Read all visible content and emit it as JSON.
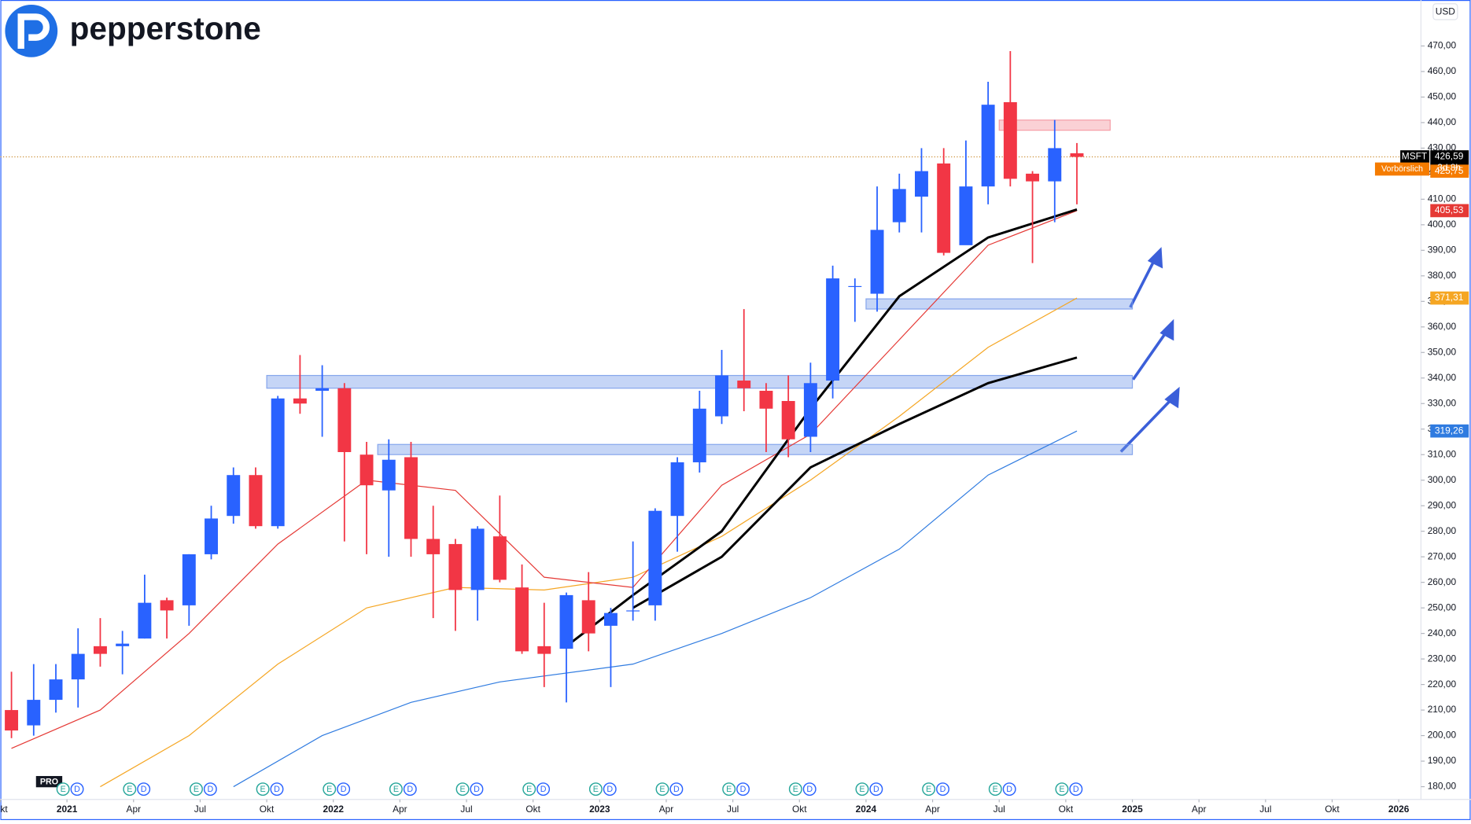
{
  "brand": "pepperstone",
  "watermark": "PRO",
  "chart_data": {
    "type": "candlestick",
    "currency": "USD",
    "up_color": "#2962ff",
    "down_color": "#f23645",
    "x": [
      "2020-10",
      "2020-11",
      "2020-12",
      "2021-01",
      "2021-02",
      "2021-03",
      "2021-04",
      "2021-05",
      "2021-06",
      "2021-07",
      "2021-08",
      "2021-09",
      "2021-10",
      "2021-11",
      "2021-12",
      "2022-01",
      "2022-02",
      "2022-03",
      "2022-04",
      "2022-05",
      "2022-06",
      "2022-07",
      "2022-08",
      "2022-09",
      "2022-10",
      "2022-11",
      "2022-12",
      "2023-01",
      "2023-02",
      "2023-03",
      "2023-04",
      "2023-05",
      "2023-06",
      "2023-07",
      "2023-08",
      "2023-09",
      "2023-10",
      "2023-11",
      "2023-12",
      "2024-01",
      "2024-02",
      "2024-03",
      "2024-04",
      "2024-05",
      "2024-06",
      "2024-07",
      "2024-08",
      "2024-09",
      "2024-10"
    ],
    "open": [
      210,
      204,
      214,
      222,
      235,
      235,
      238,
      253,
      251,
      271,
      286,
      302,
      282,
      332,
      335,
      336,
      310,
      296,
      309,
      277,
      275,
      257,
      278,
      258,
      235,
      234,
      253,
      243,
      249,
      251,
      286,
      307,
      325,
      339,
      335,
      331,
      317,
      339,
      376,
      373,
      401,
      411,
      424,
      392,
      415,
      448,
      420,
      417,
      428
    ],
    "high": [
      225,
      228,
      228,
      242,
      246,
      241,
      263,
      254,
      271,
      290,
      305,
      305,
      333,
      349,
      345,
      338,
      315,
      316,
      315,
      290,
      277,
      282,
      294,
      267,
      252,
      256,
      264,
      250,
      276,
      289,
      309,
      335,
      351,
      367,
      338,
      341,
      346,
      384,
      379,
      415,
      420,
      430,
      430,
      433,
      456,
      468,
      421,
      441,
      432
    ],
    "low": [
      199,
      200,
      209,
      211,
      227,
      224,
      238,
      238,
      243,
      269,
      283,
      281,
      281,
      326,
      317,
      276,
      271,
      270,
      270,
      246,
      241,
      245,
      260,
      232,
      219,
      213,
      233,
      219,
      245,
      245,
      272,
      303,
      322,
      327,
      311,
      309,
      311,
      332,
      362,
      366,
      397,
      397,
      388,
      394,
      408,
      415,
      385,
      401,
      408
    ],
    "close": [
      202,
      214,
      222,
      232,
      232,
      236,
      252,
      249,
      271,
      285,
      302,
      282,
      332,
      330,
      336,
      311,
      298,
      308,
      277,
      271,
      257,
      281,
      261,
      233,
      232,
      255,
      240,
      248,
      249,
      288,
      307,
      328,
      341,
      336,
      328,
      316,
      338,
      379,
      376,
      398,
      414,
      421,
      389,
      415,
      447,
      418,
      417,
      430,
      426.59
    ],
    "lines": [
      {
        "color": "#2f7be0",
        "width": 1,
        "x": [
          "2021-08",
          "2021-12",
          "2022-04",
          "2022-08",
          "2023-02",
          "2023-06",
          "2023-10",
          "2024-02",
          "2024-06",
          "2024-10"
        ],
        "values": [
          180,
          200,
          213,
          221,
          228,
          240,
          254,
          273,
          302,
          319.26
        ]
      },
      {
        "color": "#f5a623",
        "width": 1,
        "x": [
          "2021-02",
          "2021-06",
          "2021-10",
          "2022-02",
          "2022-06",
          "2022-10",
          "2023-02",
          "2023-06",
          "2023-10",
          "2024-02",
          "2024-06",
          "2024-10"
        ],
        "values": [
          180,
          200,
          228,
          250,
          258,
          257,
          262,
          278,
          300,
          325,
          352,
          371.31
        ]
      },
      {
        "color": "#e53935",
        "width": 1,
        "x": [
          "2020-10",
          "2021-02",
          "2021-06",
          "2021-10",
          "2022-02",
          "2022-06",
          "2022-10",
          "2023-02",
          "2023-06",
          "2023-10",
          "2024-02",
          "2024-06",
          "2024-10"
        ],
        "values": [
          195,
          210,
          240,
          275,
          300,
          296,
          262,
          258,
          298,
          318,
          355,
          392,
          405.53
        ]
      },
      {
        "color": "#000000",
        "width": 2.5,
        "x": [
          "2022-11",
          "2023-02",
          "2023-06",
          "2023-10",
          "2024-02",
          "2024-06",
          "2024-10"
        ],
        "values": [
          235,
          255,
          280,
          328,
          372,
          395,
          406
        ]
      },
      {
        "color": "#000000",
        "width": 2.5,
        "x": [
          "2023-02",
          "2023-06",
          "2023-10",
          "2024-02",
          "2024-06",
          "2024-10"
        ],
        "values": [
          250,
          270,
          305,
          322,
          338,
          348
        ]
      }
    ],
    "zones": [
      {
        "start": "2024-01",
        "end": "2025-01",
        "from": 367,
        "to": 371,
        "color": "#6f95e8"
      },
      {
        "start": "2021-10",
        "end": "2025-01",
        "from": 336,
        "to": 341,
        "color": "#6f95e8"
      },
      {
        "start": "2022-03",
        "end": "2025-01",
        "from": 310,
        "to": 314,
        "color": "#6f95e8"
      },
      {
        "start": "2024-07",
        "end": "2024-12",
        "from": 437,
        "to": 441,
        "color": "#f28b96"
      }
    ],
    "last_price": 426.59,
    "symbol": "MSFT",
    "countdown": "3d 8h",
    "premarket": "Vorbörslich",
    "price_labels": {
      "values": [
        426.59,
        425.75,
        405.53,
        371.31,
        319.26
      ],
      "value_labels": [
        "426,59",
        "425,75",
        "405,53",
        "371,31",
        "319,26"
      ],
      "colors": [
        "#000000",
        "#f57c00",
        "#e53935",
        "#f5a623",
        "#2f7be0"
      ]
    },
    "events": {
      "x": [
        "2021-01",
        "2021-04",
        "2021-07",
        "2021-10",
        "2022-01",
        "2022-04",
        "2022-07",
        "2022-10",
        "2023-01",
        "2023-04",
        "2023-07",
        "2023-10",
        "2024-01",
        "2024-04",
        "2024-07",
        "2024-10"
      ],
      "labels": [
        "E",
        "D"
      ]
    },
    "xlim": [
      "2020-10",
      "2026-02"
    ],
    "xticks": [
      {
        "value": "2020-10",
        "label": "Okt"
      },
      {
        "value": "2021-01",
        "label": "2021"
      },
      {
        "value": "2021-04",
        "label": "Apr"
      },
      {
        "value": "2021-07",
        "label": "Jul"
      },
      {
        "value": "2021-10",
        "label": "Okt"
      },
      {
        "value": "2022-01",
        "label": "2022"
      },
      {
        "value": "2022-04",
        "label": "Apr"
      },
      {
        "value": "2022-07",
        "label": "Jul"
      },
      {
        "value": "2022-10",
        "label": "Okt"
      },
      {
        "value": "2023-01",
        "label": "2023"
      },
      {
        "value": "2023-04",
        "label": "Apr"
      },
      {
        "value": "2023-07",
        "label": "Jul"
      },
      {
        "value": "2023-10",
        "label": "Okt"
      },
      {
        "value": "2024-01",
        "label": "2024"
      },
      {
        "value": "2024-04",
        "label": "Apr"
      },
      {
        "value": "2024-07",
        "label": "Jul"
      },
      {
        "value": "2024-10",
        "label": "Okt"
      },
      {
        "value": "2025-01",
        "label": "2025"
      },
      {
        "value": "2025-04",
        "label": "Apr"
      },
      {
        "value": "2025-07",
        "label": "Jul"
      },
      {
        "value": "2025-10",
        "label": "Okt"
      },
      {
        "value": "2026-01",
        "label": "2026"
      }
    ],
    "ylim": [
      175,
      488
    ],
    "yticks": [
      {
        "value": 180,
        "label": "180,00"
      },
      {
        "value": 190,
        "label": "190,00"
      },
      {
        "value": 200,
        "label": "200,00"
      },
      {
        "value": 210,
        "label": "210,00"
      },
      {
        "value": 220,
        "label": "220,00"
      },
      {
        "value": 230,
        "label": "230,00"
      },
      {
        "value": 240,
        "label": "240,00"
      },
      {
        "value": 250,
        "label": "250,00"
      },
      {
        "value": 260,
        "label": "260,00"
      },
      {
        "value": 270,
        "label": "270,00"
      },
      {
        "value": 280,
        "label": "280,00"
      },
      {
        "value": 290,
        "label": "290,00"
      },
      {
        "value": 300,
        "label": "300,00"
      },
      {
        "value": 310,
        "label": "310,00"
      },
      {
        "value": 320,
        "label": "320,00"
      },
      {
        "value": 330,
        "label": "330,00"
      },
      {
        "value": 340,
        "label": "340,00"
      },
      {
        "value": 350,
        "label": "350,00"
      },
      {
        "value": 360,
        "label": "360,00"
      },
      {
        "value": 370,
        "label": "370,00"
      },
      {
        "value": 380,
        "label": "380,00"
      },
      {
        "value": 390,
        "label": "390,00"
      },
      {
        "value": 400,
        "label": "400,00"
      },
      {
        "value": 410,
        "label": "410,00"
      },
      {
        "value": 420,
        "label": "420,00"
      },
      {
        "value": 430,
        "label": "430,00"
      },
      {
        "value": 440,
        "label": "440,00"
      },
      {
        "value": 450,
        "label": "450,00"
      },
      {
        "value": 460,
        "label": "460,00"
      },
      {
        "value": 470,
        "label": "470,00"
      }
    ]
  }
}
